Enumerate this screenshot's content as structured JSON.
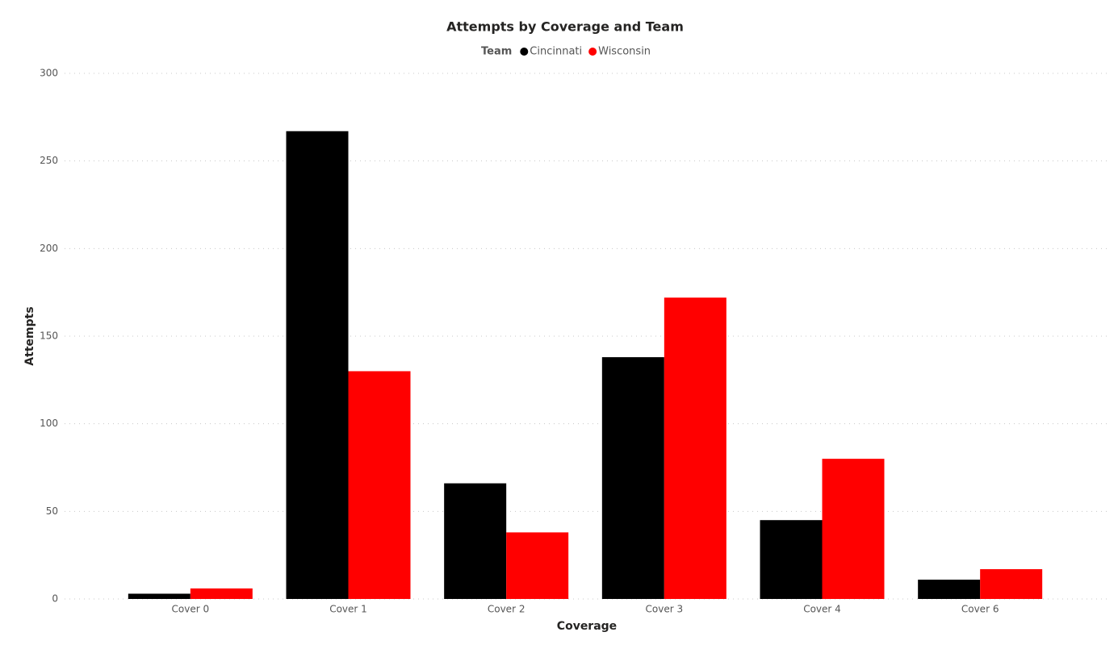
{
  "chart_data": {
    "type": "bar",
    "title": "Attempts by Coverage and Team",
    "legend_title": "Team",
    "x_label": "Coverage",
    "y_label": "Attempts",
    "categories": [
      "Cover 0",
      "Cover 1",
      "Cover 2",
      "Cover 3",
      "Cover 4",
      "Cover 6"
    ],
    "series": [
      {
        "name": "Cincinnati",
        "color": "#000000",
        "values": [
          3,
          267,
          66,
          138,
          45,
          11
        ]
      },
      {
        "name": "Wisconsin",
        "color": "#ff0000",
        "values": [
          6,
          130,
          38,
          172,
          80,
          17
        ]
      }
    ],
    "ylim": [
      0,
      300
    ],
    "yticks": [
      0,
      50,
      100,
      150,
      200,
      250,
      300
    ],
    "grid": true,
    "legend": "top"
  }
}
